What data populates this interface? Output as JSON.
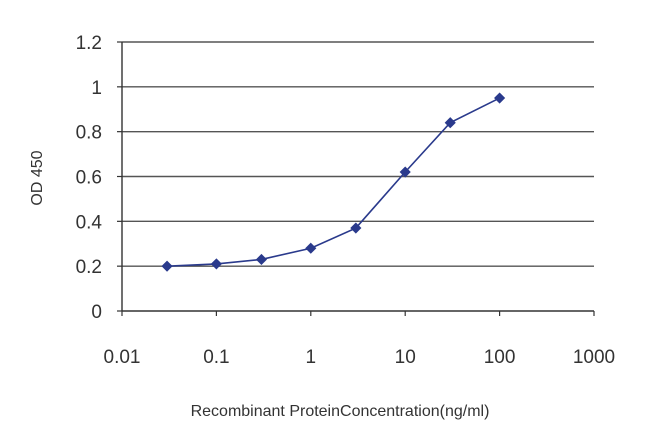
{
  "chart_data": {
    "type": "line",
    "xscale": "log",
    "xlim": [
      0.01,
      1000
    ],
    "ylim": [
      0,
      1.2
    ],
    "xticks": [
      0.01,
      0.1,
      1,
      10,
      100,
      1000
    ],
    "xtick_labels": [
      "0.01",
      "0.1",
      "1",
      "10",
      "100",
      "1000"
    ],
    "yticks": [
      0,
      0.2,
      0.4,
      0.6,
      0.8,
      1,
      1.2
    ],
    "ytick_labels": [
      "0",
      "0.2",
      "0.4",
      "0.6",
      "0.8",
      "1",
      "1.2"
    ],
    "xlabel": "Recombinant ProteinConcentration(ng/ml)",
    "ylabel": "OD 450",
    "grid": "horizontal",
    "legend": "none",
    "colors": {
      "series": "#2a3a8c",
      "grid": "#555555",
      "axis": "#333333"
    },
    "series": [
      {
        "x": [
          0.03,
          0.1,
          0.3,
          1,
          3,
          10,
          30,
          100
        ],
        "y": [
          0.2,
          0.21,
          0.23,
          0.28,
          0.37,
          0.62,
          0.84,
          0.95
        ]
      }
    ]
  }
}
